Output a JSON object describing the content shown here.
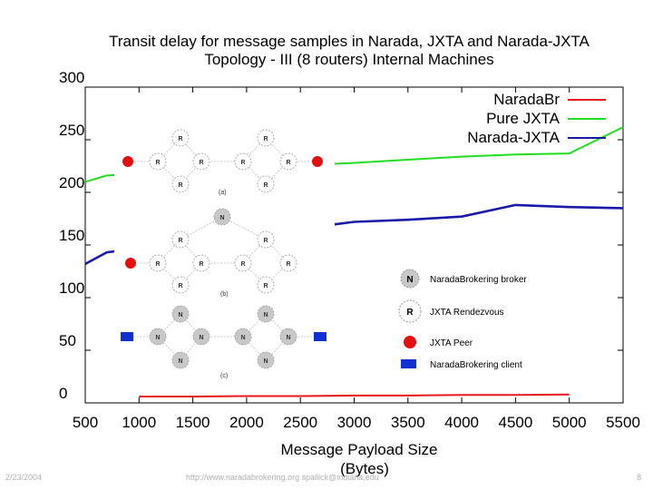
{
  "chart_data": {
    "type": "line",
    "title_line1": "Transit delay for message samples in Narada, JXTA and Narada-JXTA",
    "title_line2": "Topology - III (8 routers) Internal Machines",
    "xlabel_line1": "Message Payload Size",
    "xlabel_line2": "(Bytes)",
    "ylabel": "",
    "xlim": [
      500,
      5500
    ],
    "ylim": [
      0,
      300
    ],
    "xticks": [
      500,
      1000,
      1500,
      2000,
      2500,
      3000,
      3500,
      4000,
      4500,
      5000,
      5500
    ],
    "yticks": [
      0,
      50,
      100,
      150,
      200,
      250,
      300
    ],
    "legend_position": "top-right",
    "series": [
      {
        "name": "NaradaBr",
        "color": "#e8191c",
        "points": [
          [
            1000,
            6
          ],
          [
            1500,
            6
          ],
          [
            2000,
            6.5
          ],
          [
            2500,
            6.5
          ],
          [
            3000,
            7
          ],
          [
            3500,
            7
          ],
          [
            4000,
            7.5
          ],
          [
            4500,
            7.5
          ],
          [
            5000,
            8
          ]
        ]
      },
      {
        "name": "Pure JXTA",
        "color": "#22dd22",
        "points": [
          [
            500,
            210
          ],
          [
            700,
            216
          ],
          [
            3000,
            228
          ],
          [
            3500,
            231
          ],
          [
            4000,
            234
          ],
          [
            4500,
            236
          ],
          [
            5000,
            237
          ],
          [
            5500,
            262
          ]
        ]
      },
      {
        "name": "Narada-JXTA",
        "color": "#1a1aaa",
        "points": [
          [
            500,
            132
          ],
          [
            700,
            143
          ],
          [
            2700,
            168
          ],
          [
            3000,
            172
          ],
          [
            3500,
            174
          ],
          [
            4000,
            177
          ],
          [
            4500,
            188
          ],
          [
            5000,
            186
          ],
          [
            5500,
            185
          ]
        ]
      }
    ]
  },
  "inset": {
    "labels": {
      "a": "(a)",
      "b": "(b)",
      "c": "(c)"
    },
    "router_letter": "R",
    "broker_letter": "N",
    "legend": {
      "broker": "NaradaBrokering broker",
      "rendezvous": "JXTA Rendezvous",
      "peer": "JXTA Peer",
      "client": "NaradaBrokering client"
    },
    "colors": {
      "peer": "#e21010",
      "client": "#1030d0",
      "broker_fill": "#c8c8c8"
    }
  },
  "footer": {
    "left": "2/23/2004",
    "center": "http://www.naradabrokering.org  spallick@indiana.edu",
    "right": "8"
  }
}
